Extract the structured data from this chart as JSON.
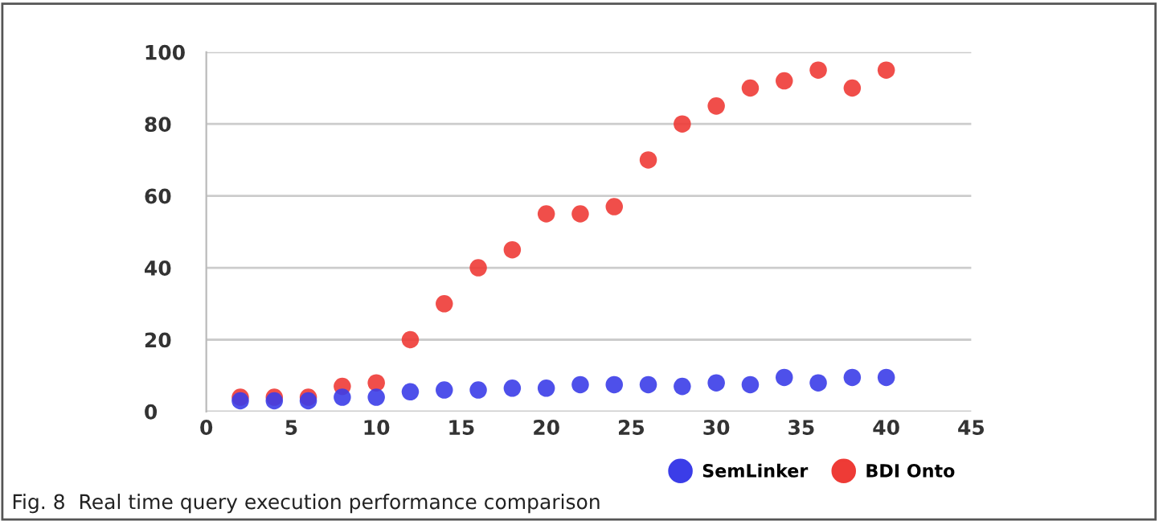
{
  "chart_data": {
    "type": "scatter",
    "x": [
      2,
      4,
      6,
      8,
      10,
      12,
      14,
      16,
      18,
      20,
      22,
      24,
      26,
      28,
      30,
      32,
      34,
      36,
      38,
      40
    ],
    "series": [
      {
        "name": "SemLinker",
        "color": "#3b3de8",
        "values": [
          3,
          3,
          3,
          4,
          4,
          5.5,
          6,
          6,
          6.5,
          6.5,
          7.5,
          7.5,
          7.5,
          7,
          8,
          7.5,
          9.5,
          8,
          9.5,
          9.5
        ]
      },
      {
        "name": "BDI Onto",
        "color": "#ee3b36",
        "values": [
          4,
          4,
          4,
          7,
          8,
          20,
          30,
          40,
          45,
          55,
          55,
          57,
          70,
          80,
          85,
          90,
          92,
          95,
          90,
          95
        ]
      }
    ],
    "xlim": [
      0,
      45
    ],
    "xticks": [
      0,
      5,
      10,
      15,
      20,
      25,
      30,
      35,
      40,
      45
    ],
    "ylim": [
      0,
      100
    ],
    "yticks": [
      0,
      20,
      40,
      60,
      80,
      100
    ],
    "grid": "y",
    "legend": "bottom right",
    "marker": "circle",
    "annotations": [
      "Fig. 8  Real time query execution performance comparison"
    ]
  }
}
